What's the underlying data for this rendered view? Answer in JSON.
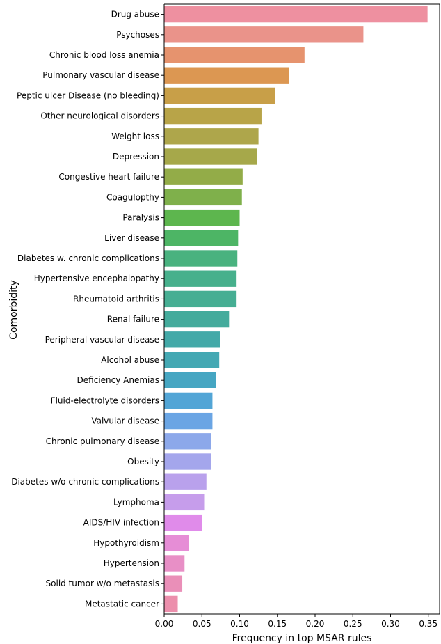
{
  "chart_data": {
    "type": "bar",
    "orientation": "horizontal",
    "title": "",
    "xlabel": "Frequency in top MSAR rules",
    "ylabel": "Comorbidity",
    "xlim": [
      0,
      0.365
    ],
    "xticks": [
      0.0,
      0.05,
      0.1,
      0.15,
      0.2,
      0.25,
      0.3,
      0.35
    ],
    "xtick_labels": [
      "0.00",
      "0.05",
      "0.10",
      "0.15",
      "0.20",
      "0.25",
      "0.30",
      "0.35"
    ],
    "grid": false,
    "categories": [
      "Drug abuse",
      "Psychoses",
      "Chronic blood loss anemia",
      "Pulmonary vascular disease",
      "Peptic ulcer Disease (no bleeding)",
      "Other neurological disorders",
      "Weight loss",
      "Depression",
      "Congestive heart failure",
      "Coagulopthy",
      "Paralysis",
      "Liver disease",
      "Diabetes w. chronic complications",
      "Hypertensive encephalopathy",
      "Rheumatoid arthritis",
      "Renal failure",
      "Peripheral vascular disease",
      "Alcohol abuse",
      "Deficiency Anemias",
      "Fluid-electrolyte disorders",
      "Valvular disease",
      "Chronic pulmonary disease",
      "Obesity",
      "Diabetes w/o chronic complications",
      "Lymphoma",
      "AIDS/HIV infection",
      "Hypothyroidism",
      "Hypertension",
      "Solid tumor w/o metastasis",
      "Metastatic cancer"
    ],
    "values": [
      0.349,
      0.264,
      0.186,
      0.165,
      0.147,
      0.129,
      0.125,
      0.123,
      0.104,
      0.103,
      0.1,
      0.098,
      0.097,
      0.096,
      0.096,
      0.086,
      0.074,
      0.073,
      0.069,
      0.064,
      0.064,
      0.062,
      0.062,
      0.056,
      0.053,
      0.05,
      0.033,
      0.027,
      0.024,
      0.018
    ],
    "colors": [
      "#ee90a0",
      "#ea938a",
      "#e6936e",
      "#dc9752",
      "#c89f48",
      "#b8a448",
      "#aea64b",
      "#a6a84a",
      "#93ac48",
      "#7fb04b",
      "#5db64e",
      "#4db565",
      "#49b27f",
      "#47b08c",
      "#46ae93",
      "#44ab9c",
      "#43a9a8",
      "#44a8b3",
      "#46a6c2",
      "#52a5d6",
      "#6aa5e4",
      "#8ca8ea",
      "#a4a6ec",
      "#b9a1ec",
      "#c69deb",
      "#e08bea",
      "#e68dd6",
      "#e88fc6",
      "#ea8fb8",
      "#ec8fac"
    ]
  }
}
